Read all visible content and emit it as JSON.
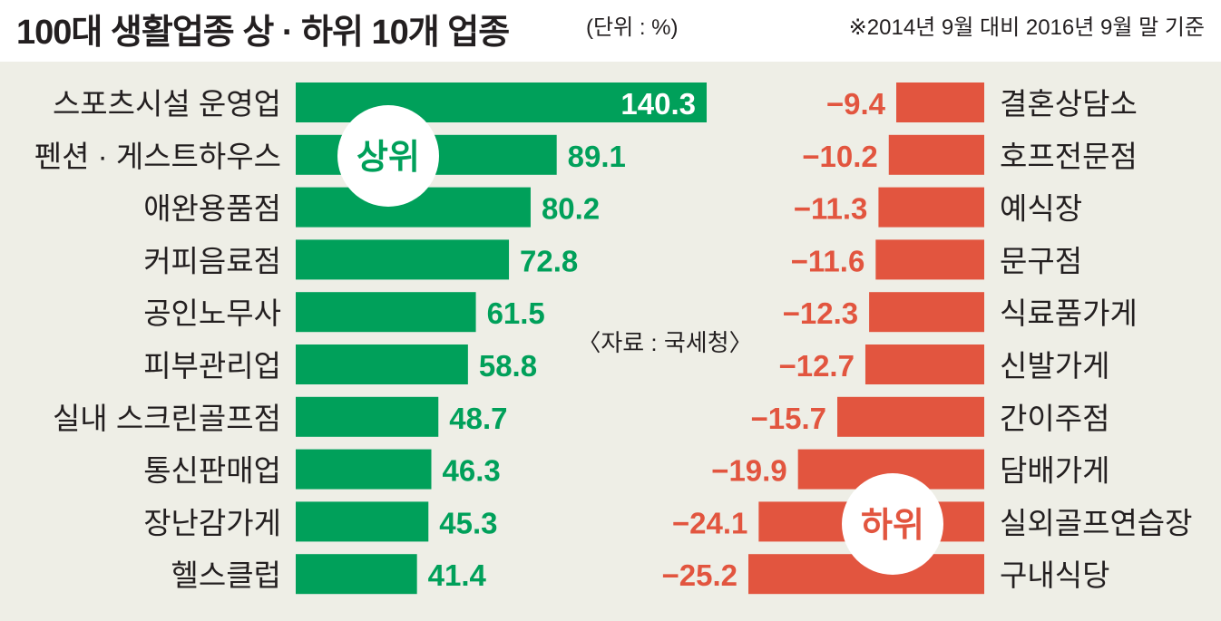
{
  "header": {
    "title": "100대 생활업종 상 · 하위 10개 업종",
    "unit": "(단위 : %)",
    "basis": "※2014년 9월 대비 2016년 9월 말 기준"
  },
  "source": "〈자료 : 국세청〉",
  "colors": {
    "top": "#00a05a",
    "bottom": "#e2553f",
    "panel": "#eeeee6"
  },
  "chart_data": [
    {
      "type": "bar",
      "orientation": "horizontal",
      "title": "상위",
      "series": [
        {
          "name": "상위",
          "categories": [
            "스포츠시설 운영업",
            "펜션 · 게스트하우스",
            "애완용품점",
            "커피음료점",
            "공인노무사",
            "피부관리업",
            "실내 스크린골프점",
            "통신판매업",
            "장난감가게",
            "헬스클럽"
          ],
          "values": [
            140.3,
            89.1,
            80.2,
            72.8,
            61.5,
            58.8,
            48.7,
            46.3,
            45.3,
            41.4
          ],
          "labels": [
            "140.3",
            "89.1",
            "80.2",
            "72.8",
            "61.5",
            "58.8",
            "48.7",
            "46.3",
            "45.3",
            "41.4"
          ]
        }
      ]
    },
    {
      "type": "bar",
      "orientation": "horizontal",
      "title": "하위",
      "series": [
        {
          "name": "하위",
          "categories": [
            "결혼상담소",
            "호프전문점",
            "예식장",
            "문구점",
            "식료품가게",
            "신발가게",
            "간이주점",
            "담배가게",
            "실외골프연습장",
            "구내식당"
          ],
          "values": [
            -9.4,
            -10.2,
            -11.3,
            -11.6,
            -12.3,
            -12.7,
            -15.7,
            -19.9,
            -24.1,
            -25.2
          ],
          "labels": [
            "−9.4",
            "−10.2",
            "−11.3",
            "−11.6",
            "−12.3",
            "−12.7",
            "−15.7",
            "−19.9",
            "−24.1",
            "−25.2"
          ]
        }
      ]
    }
  ]
}
